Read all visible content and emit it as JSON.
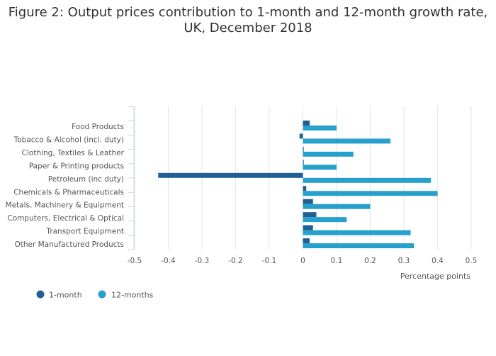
{
  "title_line1": "Figure 2: Output prices contribution to 1-month and 12-month growth rate,",
  "title_line2": "UK, December 2018",
  "chart_data": {
    "type": "bar",
    "orientation": "horizontal",
    "categories": [
      "Food Products",
      "Tobacco & Alcohol (incl. duty)",
      "Clothing, Textiles & Leather",
      "Paper & Printing products",
      "Petroleum (inc duty)",
      "Chemicals & Pharmaceuticals",
      "Metals, Machinery & Equipment",
      "Computers, Electrical & Optical",
      "Transport Equipment",
      "Other Manufactured Products"
    ],
    "series": [
      {
        "name": "1-month",
        "color": "#206095",
        "values": [
          0.02,
          -0.01,
          0.0,
          0.0,
          -0.43,
          0.01,
          0.03,
          0.04,
          0.03,
          0.02
        ]
      },
      {
        "name": "12-months",
        "color": "#27a0cc",
        "values": [
          0.1,
          0.26,
          0.15,
          0.1,
          0.38,
          0.4,
          0.2,
          0.13,
          0.32,
          0.33
        ]
      }
    ],
    "xlabel": "Percentage points",
    "xlim": [
      -0.5,
      0.5
    ],
    "xticks": [
      "-0.5",
      "-0.4",
      "-0.3",
      "-0.2",
      "-0.1",
      "0",
      "0.1",
      "0.2",
      "0.3",
      "0.4",
      "0.5"
    ],
    "xtick_values": [
      -0.5,
      -0.4,
      -0.3,
      -0.2,
      -0.1,
      0,
      0.1,
      0.2,
      0.3,
      0.4,
      0.5
    ],
    "grid": true,
    "legend_position": "bottom-left"
  }
}
